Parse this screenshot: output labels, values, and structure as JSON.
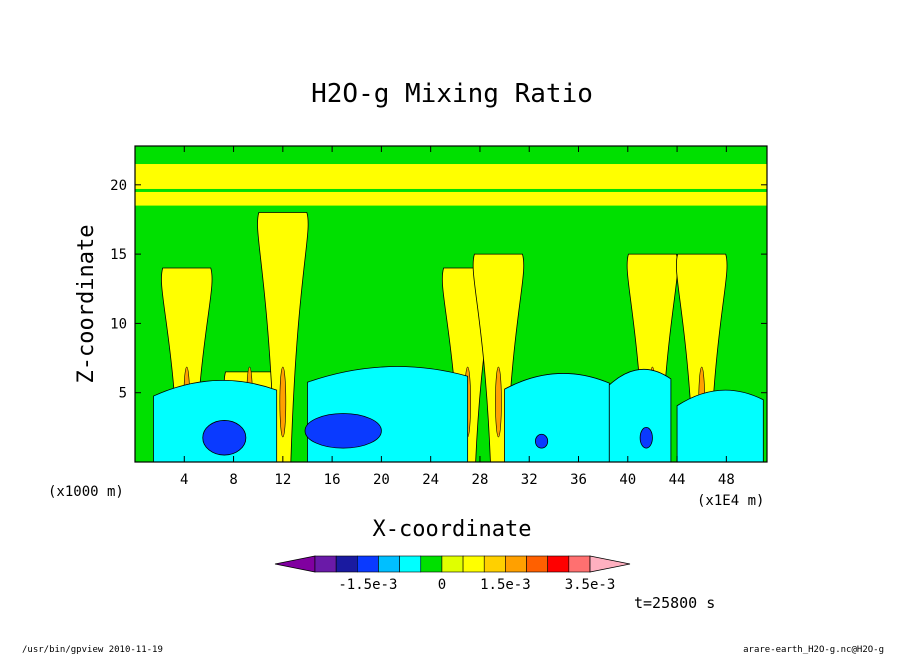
{
  "chart_data": {
    "type": "heatmap",
    "title": "H2O-g Mixing Ratio",
    "xlabel": "X-coordinate",
    "ylabel": "Z-coordinate",
    "x_unit_left": "(x1000 m)",
    "x_unit_right": "(x1E4 m)",
    "xlim": [
      0,
      51.3
    ],
    "ylim": [
      0,
      22.8
    ],
    "x_ticks": [
      4,
      8,
      12,
      16,
      20,
      24,
      28,
      32,
      36,
      40,
      44,
      48
    ],
    "y_ticks": [
      5,
      10,
      15,
      20
    ],
    "time_label": "t=25800 s",
    "colorbar": {
      "colors": [
        "#8000a0",
        "#6a1aa8",
        "#1a1aa0",
        "#0a3aff",
        "#00bfff",
        "#00ffff",
        "#00e000",
        "#e0ff00",
        "#ffff00",
        "#ffd000",
        "#ffa000",
        "#ff6000",
        "#ff0000",
        "#ff7070",
        "#ffb0c0"
      ],
      "labels": [
        "-1.5e-3",
        "0",
        "1.5e-3",
        "3.5e-3"
      ]
    },
    "fields": {
      "background": "#00e000",
      "yellow_band_z": [
        18.5,
        21.5
      ],
      "cyan_regions": [
        {
          "x": [
            1.5,
            11.5
          ],
          "z": [
            0,
            6.2
          ]
        },
        {
          "x": [
            14,
            27
          ],
          "z": [
            0,
            7.2
          ]
        },
        {
          "x": [
            30,
            38.5
          ],
          "z": [
            0,
            6.7
          ]
        },
        {
          "x": [
            38.5,
            43.5
          ],
          "z": [
            0,
            7
          ]
        },
        {
          "x": [
            44,
            51
          ],
          "z": [
            0,
            5.5
          ]
        }
      ],
      "blue_regions": [
        {
          "x": [
            5.5,
            9
          ],
          "z": [
            0.5,
            3
          ]
        },
        {
          "x": [
            13.8,
            20
          ],
          "z": [
            1,
            3.5
          ]
        },
        {
          "x": [
            32.5,
            33.5
          ],
          "z": [
            1,
            2
          ]
        },
        {
          "x": [
            41,
            42
          ],
          "z": [
            1,
            2.5
          ]
        }
      ],
      "plumes": [
        {
          "x": 4.2,
          "top": 14
        },
        {
          "x": 9.3,
          "top": 6.5
        },
        {
          "x": 12,
          "top": 18
        },
        {
          "x": 27,
          "top": 14
        },
        {
          "x": 29.5,
          "top": 15
        },
        {
          "x": 42,
          "top": 15
        },
        {
          "x": 46,
          "top": 15
        }
      ]
    }
  },
  "footer": {
    "left": "/usr/bin/gpview  2010-11-19",
    "right": "arare-earth_H2O-g.nc@H2O-g"
  }
}
